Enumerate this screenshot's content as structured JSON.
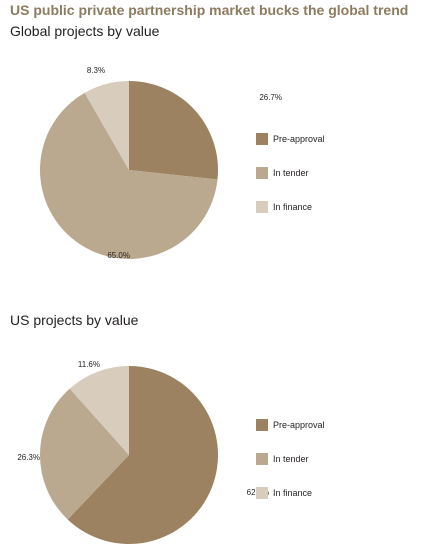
{
  "title": "US public private partnership market bucks the global trend",
  "colors": {
    "pre_approval": "#9c8260",
    "in_tender": "#baa98f",
    "in_finance": "#d8ccbc",
    "title": "#8e7b5f"
  },
  "chart_data": [
    {
      "type": "pie",
      "title": "Global projects by value",
      "slices": [
        {
          "label": "Pre-approval",
          "value": 26.7,
          "display": "26.7%",
          "color": "#9c8260"
        },
        {
          "label": "In tender",
          "value": 65.0,
          "display": "65.0%",
          "color": "#baa98f"
        },
        {
          "label": "In finance",
          "value": 8.3,
          "display": "8.3%",
          "color": "#d8ccbc"
        }
      ],
      "legend": [
        "Pre-approval",
        "In tender",
        "In finance"
      ],
      "legend_position": "right"
    },
    {
      "type": "pie",
      "title": "US projects by value",
      "slices": [
        {
          "label": "Pre-approval",
          "value": 62.1,
          "display": "62.1%",
          "color": "#9c8260"
        },
        {
          "label": "In tender",
          "value": 26.3,
          "display": "26.3%",
          "color": "#baa98f"
        },
        {
          "label": "In finance",
          "value": 11.6,
          "display": "11.6%",
          "color": "#d8ccbc"
        }
      ],
      "legend": [
        "Pre-approval",
        "In tender",
        "In finance"
      ],
      "legend_position": "right"
    }
  ]
}
